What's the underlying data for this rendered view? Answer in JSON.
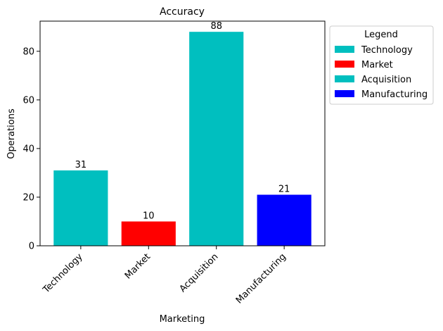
{
  "chart_data": {
    "type": "bar",
    "title": "Accuracy",
    "xlabel": "Marketing",
    "ylabel": "Operations",
    "categories": [
      "Technology",
      "Market",
      "Acquisition",
      "Manufacturing"
    ],
    "values": [
      31,
      10,
      88,
      21
    ],
    "colors": [
      "#00bfbf",
      "#ff0000",
      "#00bfbf",
      "#0000ff"
    ],
    "ylim": [
      0,
      92.4
    ],
    "yticks": [
      0,
      20,
      40,
      60,
      80
    ],
    "grid": false,
    "legend": {
      "title": "Legend",
      "placement": "outside-right",
      "entries": [
        {
          "label": "Technology",
          "color": "#00bfbf"
        },
        {
          "label": "Market",
          "color": "#ff0000"
        },
        {
          "label": "Acquisition",
          "color": "#00bfbf"
        },
        {
          "label": "Manufacturing",
          "color": "#0000ff"
        }
      ]
    }
  }
}
